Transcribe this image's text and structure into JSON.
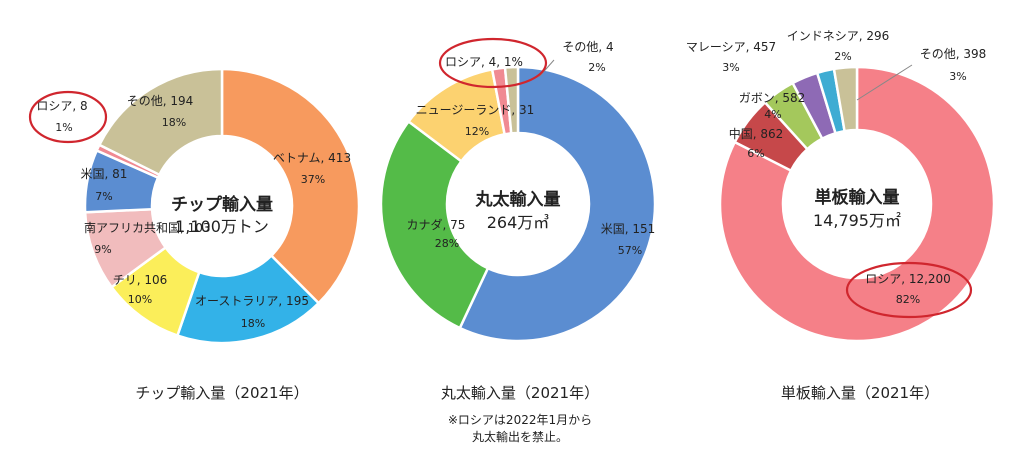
{
  "chart_data": [
    {
      "type": "pie",
      "title": "チップ輸入量（2021年）",
      "center_label": [
        "チップ輸入量",
        "1,100万トン"
      ],
      "unit": "万トン",
      "slices": [
        {
          "name": "ベトナム",
          "value": 413,
          "value_text": "413",
          "percent": "37%",
          "color": "#f79a5e"
        },
        {
          "name": "オーストラリア",
          "value": 195,
          "value_text": "195",
          "percent": "18%",
          "color": "#33b2e8"
        },
        {
          "name": "チリ",
          "value": 106,
          "value_text": "106",
          "percent": "10%",
          "color": "#fbee5a"
        },
        {
          "name": "南アフリカ共和国",
          "value": 103,
          "value_text": "103",
          "percent": "9%",
          "color": "#f1bcbd"
        },
        {
          "name": "米国",
          "value": 81,
          "value_text": "81",
          "percent": "7%",
          "color": "#5b8dd1"
        },
        {
          "name": "ロシア",
          "value": 8,
          "value_text": "8",
          "percent": "1%",
          "color": "#f08a92",
          "highlight": true
        },
        {
          "name": "その他",
          "value": 194,
          "value_text": "194",
          "percent": "18%",
          "color": "#c9c198"
        }
      ]
    },
    {
      "type": "pie",
      "title": "丸太輸入量（2021年）",
      "center_label": [
        "丸太輸入量",
        "264万㎥"
      ],
      "unit": "万㎥",
      "note": [
        "※ロシアは2022年1月から",
        "丸太輸出を禁止。"
      ],
      "slices": [
        {
          "name": "米国",
          "value": 151,
          "value_text": "151",
          "percent": "57%",
          "color": "#5b8dd1"
        },
        {
          "name": "カナダ",
          "value": 75,
          "value_text": "75",
          "percent": "28%",
          "color": "#54bb48"
        },
        {
          "name": "ニュージーランド",
          "value": 31,
          "value_text": "31",
          "percent": "12%",
          "color": "#fcd270"
        },
        {
          "name": "ロシア",
          "value": 4,
          "value_text": "4",
          "percent": "1%",
          "color": "#f08a92",
          "highlight": true
        },
        {
          "name": "その他",
          "value": 4,
          "value_text": "4",
          "percent": "2%",
          "color": "#c9c198"
        }
      ]
    },
    {
      "type": "pie",
      "title": "単板輸入量（2021年）",
      "center_label": [
        "単板輸入量",
        "14,795万㎡"
      ],
      "unit": "万㎡",
      "slices": [
        {
          "name": "ロシア",
          "value": 12200,
          "value_text": "12,200",
          "percent": "82%",
          "color": "#f58088",
          "highlight": true
        },
        {
          "name": "中国",
          "value": 862,
          "value_text": "862",
          "percent": "6%",
          "color": "#c6484a"
        },
        {
          "name": "ガボン",
          "value": 582,
          "value_text": "582",
          "percent": "4%",
          "color": "#a4c85c"
        },
        {
          "name": "マレーシア",
          "value": 457,
          "value_text": "457",
          "percent": "3%",
          "color": "#8e6ab5"
        },
        {
          "name": "インドネシア",
          "value": 296,
          "value_text": "296",
          "percent": "2%",
          "color": "#3eacd3"
        },
        {
          "name": "その他",
          "value": 398,
          "value_text": "398",
          "percent": "3%",
          "color": "#c9c198"
        }
      ]
    }
  ]
}
